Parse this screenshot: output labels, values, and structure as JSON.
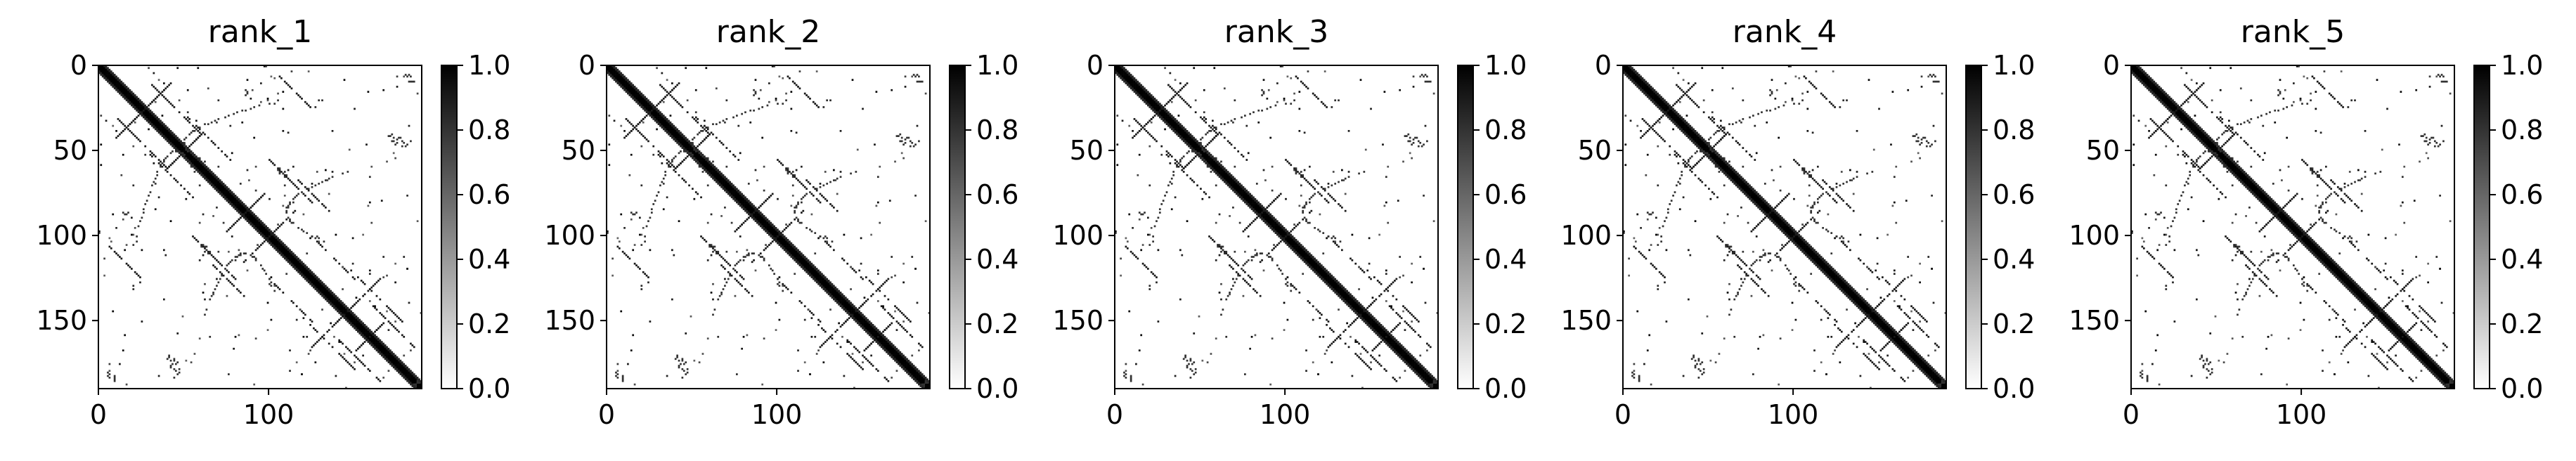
{
  "chart_data": [
    {
      "type": "heatmap",
      "title": "rank_1",
      "xticks": [
        0,
        100
      ],
      "yticks": [
        0,
        50,
        100,
        150
      ],
      "xlim": [
        0,
        190
      ],
      "ylim": [
        190,
        0
      ],
      "colorbar": {
        "min": 0.0,
        "max": 1.0,
        "ticks": [
          "0.0",
          "0.2",
          "0.4",
          "0.6",
          "0.8",
          "1.0"
        ]
      },
      "colormap": "binary"
    },
    {
      "type": "heatmap",
      "title": "rank_2",
      "xticks": [
        0,
        100
      ],
      "yticks": [
        0,
        50,
        100,
        150
      ],
      "xlim": [
        0,
        190
      ],
      "ylim": [
        190,
        0
      ],
      "colorbar": {
        "min": 0.0,
        "max": 1.0,
        "ticks": [
          "0.0",
          "0.2",
          "0.4",
          "0.6",
          "0.8",
          "1.0"
        ]
      },
      "colormap": "binary"
    },
    {
      "type": "heatmap",
      "title": "rank_3",
      "xticks": [
        0,
        100
      ],
      "yticks": [
        0,
        50,
        100,
        150
      ],
      "xlim": [
        0,
        190
      ],
      "ylim": [
        190,
        0
      ],
      "colorbar": {
        "min": 0.0,
        "max": 1.0,
        "ticks": [
          "0.0",
          "0.2",
          "0.4",
          "0.6",
          "0.8",
          "1.0"
        ]
      },
      "colormap": "binary"
    },
    {
      "type": "heatmap",
      "title": "rank_4",
      "xticks": [
        0,
        100
      ],
      "yticks": [
        0,
        50,
        100,
        150
      ],
      "xlim": [
        0,
        190
      ],
      "ylim": [
        190,
        0
      ],
      "colorbar": {
        "min": 0.0,
        "max": 1.0,
        "ticks": [
          "0.0",
          "0.2",
          "0.4",
          "0.6",
          "0.8",
          "1.0"
        ]
      },
      "colormap": "binary"
    },
    {
      "type": "heatmap",
      "title": "rank_5",
      "xticks": [
        0,
        100
      ],
      "yticks": [
        0,
        50,
        100,
        150
      ],
      "xlim": [
        0,
        190
      ],
      "ylim": [
        190,
        0
      ],
      "colorbar": {
        "min": 0.0,
        "max": 1.0,
        "ticks": [
          "0.0",
          "0.2",
          "0.4",
          "0.6",
          "0.8",
          "1.0"
        ]
      },
      "colormap": "binary"
    }
  ]
}
